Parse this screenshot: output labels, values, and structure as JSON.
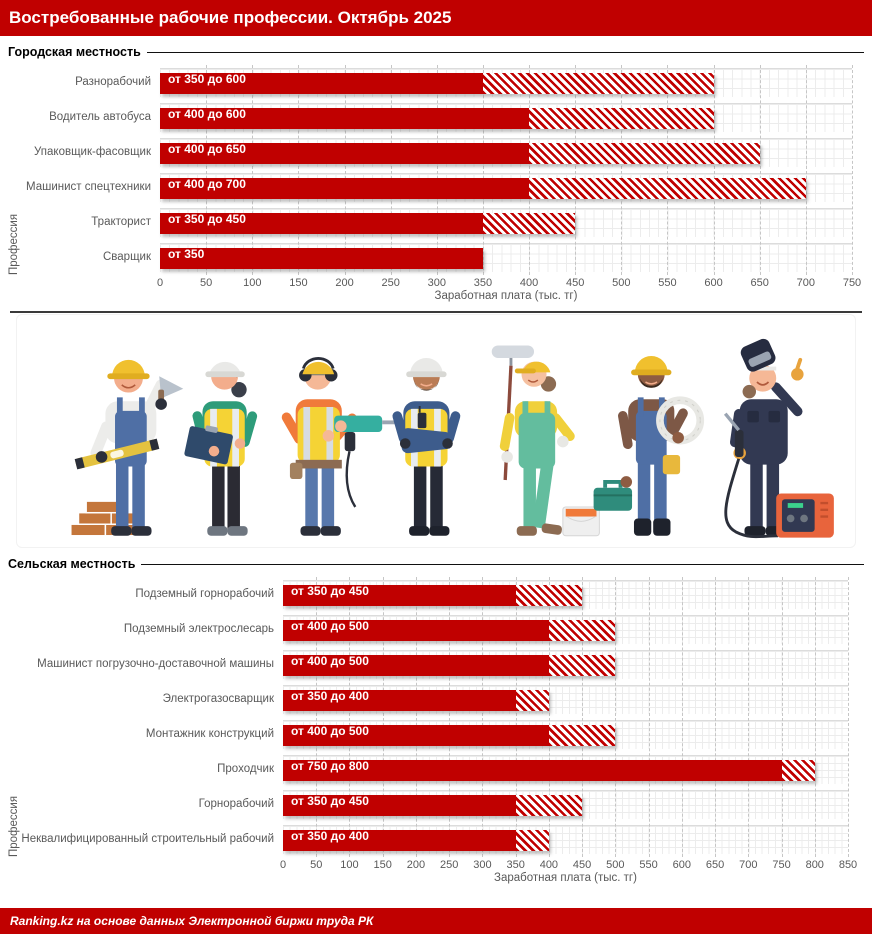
{
  "header": {
    "title": "Востребованные рабочие профессии. Октябрь 2025"
  },
  "footer": {
    "text": "Ranking.kz на основе данных Электронной биржи труда РК"
  },
  "colors": {
    "accent_red": "#C00000",
    "bar_solid": "#C00000",
    "bar_hatch_stripe": "#C00000",
    "label_gray": "#595959",
    "section_line_black": "#111111"
  },
  "illustration": {
    "workers": [
      "bricklayer-mason",
      "female-engineer-clipboard",
      "driller-worker",
      "foreman-crossed-arms",
      "female-painter-roller",
      "electrician-cable-coil",
      "welder-with-machine"
    ]
  },
  "chart_data": [
    {
      "type": "bar",
      "section": "Городская местность",
      "xlabel": "Заработная плата (тыс. тг)",
      "ylabel": "Профессия",
      "xlim": [
        0,
        750
      ],
      "xtick_step": 50,
      "grid": true,
      "orientation": "horizontal",
      "categories": [
        "Разнорабочий",
        "Водитель автобуса",
        "Упаковщик-фасовщик",
        "Машинист спецтехники",
        "Тракторист",
        "Сварщик"
      ],
      "series": [
        {
          "name": "min",
          "values": [
            350,
            400,
            400,
            400,
            350,
            350
          ]
        },
        {
          "name": "max",
          "values": [
            600,
            600,
            650,
            700,
            450,
            350
          ]
        }
      ],
      "bar_labels": [
        "от 350 до 600",
        "от 400 до 600",
        "от 400 до 650",
        "от 400 до 700",
        "от 350 до 450",
        "от 350"
      ]
    },
    {
      "type": "bar",
      "section": "Сельская местность",
      "xlabel": "Заработная плата (тыс. тг)",
      "ylabel": "Профессия",
      "xlim": [
        0,
        850
      ],
      "xtick_step": 50,
      "grid": true,
      "orientation": "horizontal",
      "categories": [
        "Подземный горнорабочий",
        "Подземный электрослесарь",
        "Машинист погрузочно-доставочной машины",
        "Электрогазосварщик",
        "Монтажник конструкций",
        "Проходчик",
        "Горнорабочий",
        "Неквалифицированный строительный рабочий"
      ],
      "series": [
        {
          "name": "min",
          "values": [
            350,
            400,
            400,
            350,
            400,
            750,
            350,
            350
          ]
        },
        {
          "name": "max",
          "values": [
            450,
            500,
            500,
            400,
            500,
            800,
            450,
            400
          ]
        }
      ],
      "bar_labels": [
        "от 350 до 450",
        "от 400 до 500",
        "от 400 до 500",
        "от 350 до 400",
        "от 400 до 500",
        "от 750 до 800",
        "от 350 до 450",
        "от 350 до 400"
      ]
    }
  ]
}
